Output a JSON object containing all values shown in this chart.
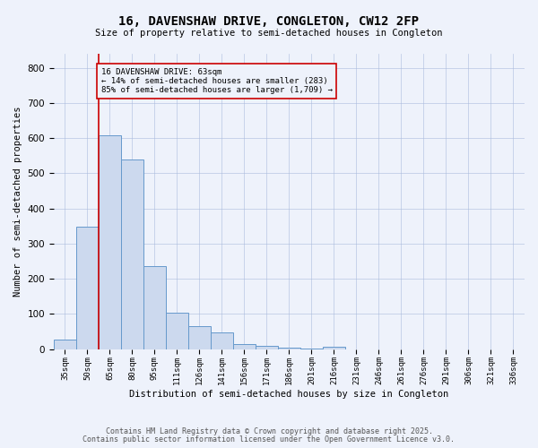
{
  "title1": "16, DAVENSHAW DRIVE, CONGLETON, CW12 2FP",
  "title2": "Size of property relative to semi-detached houses in Congleton",
  "xlabel": "Distribution of semi-detached houses by size in Congleton",
  "ylabel": "Number of semi-detached properties",
  "categories": [
    "35sqm",
    "50sqm",
    "65sqm",
    "80sqm",
    "95sqm",
    "111sqm",
    "126sqm",
    "141sqm",
    "156sqm",
    "171sqm",
    "186sqm",
    "201sqm",
    "216sqm",
    "231sqm",
    "246sqm",
    "261sqm",
    "276sqm",
    "291sqm",
    "306sqm",
    "321sqm",
    "336sqm"
  ],
  "bar_heights": [
    27,
    348,
    608,
    540,
    237,
    103,
    65,
    47,
    15,
    9,
    5,
    2,
    7,
    0,
    0,
    0,
    0,
    0,
    0,
    0,
    0
  ],
  "property_line_x": 2,
  "annotation_text": "16 DAVENSHAW DRIVE: 63sqm\n← 14% of semi-detached houses are smaller (283)\n85% of semi-detached houses are larger (1,709) →",
  "bar_color": "#ccd9ee",
  "bar_edge_color": "#6699cc",
  "line_color": "#cc0000",
  "annotation_box_edge": "#cc0000",
  "background_color": "#eef2fb",
  "footer1": "Contains HM Land Registry data © Crown copyright and database right 2025.",
  "footer2": "Contains public sector information licensed under the Open Government Licence v3.0.",
  "ylim": [
    0,
    840
  ],
  "yticks": [
    0,
    100,
    200,
    300,
    400,
    500,
    600,
    700,
    800
  ]
}
